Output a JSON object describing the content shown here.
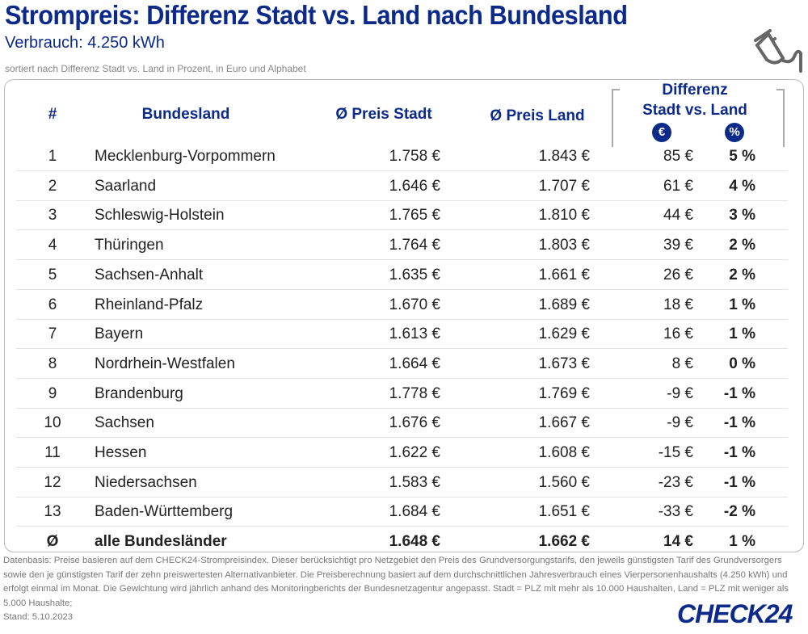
{
  "title": "Strompreis: Differenz Stadt vs. Land nach Bundesland",
  "subtitle": "Verbrauch: 4.250 kWh",
  "sort_note": "sortiert nach Differenz Stadt vs. Land in Prozent, in Euro und Alphabet",
  "headers": {
    "num": "#",
    "state": "Bundesland",
    "city": "Ø Preis Stadt",
    "rural": "Ø Preis Land",
    "diff1": "Differenz",
    "diff2": "Stadt vs. Land",
    "euro": "€",
    "pct": "%"
  },
  "rows": [
    [
      "1",
      "Mecklenburg-Vorpommern",
      "1.758 €",
      "1.843 €",
      "85 €",
      "5 %"
    ],
    [
      "2",
      "Saarland",
      "1.646 €",
      "1.707 €",
      "61 €",
      "4 %"
    ],
    [
      "3",
      "Schleswig-Holstein",
      "1.765 €",
      "1.810 €",
      "44 €",
      "3 %"
    ],
    [
      "4",
      "Thüringen",
      "1.764 €",
      "1.803 €",
      "39 €",
      "2 %"
    ],
    [
      "5",
      "Sachsen-Anhalt",
      "1.635 €",
      "1.661 €",
      "26 €",
      "2 %"
    ],
    [
      "6",
      "Rheinland-Pfalz",
      "1.670 €",
      "1.689 €",
      "18 €",
      "1 %"
    ],
    [
      "7",
      "Bayern",
      "1.613 €",
      "1.629 €",
      "16 €",
      "1 %"
    ],
    [
      "8",
      "Nordrhein-Westfalen",
      "1.664 €",
      "1.673 €",
      "8 €",
      "0 %"
    ],
    [
      "9",
      "Brandenburg",
      "1.778 €",
      "1.769 €",
      "-9 €",
      "-1 %"
    ],
    [
      "10",
      "Sachsen",
      "1.676 €",
      "1.667 €",
      "-9 €",
      "-1 %"
    ],
    [
      "11",
      "Hessen",
      "1.622 €",
      "1.608 €",
      "-15 €",
      "-1 %"
    ],
    [
      "12",
      "Niedersachsen",
      "1.583 €",
      "1.560 €",
      "-23 €",
      "-1 %"
    ],
    [
      "13",
      "Baden-Württemberg",
      "1.684 €",
      "1.651 €",
      "-33 €",
      "-2 %"
    ]
  ],
  "summary": [
    "Ø",
    "alle Bundesländer",
    "1.648 €",
    "1.662 €",
    "14 €",
    "1 %"
  ],
  "footnote": "Datenbasis: Preise basieren auf dem CHECK24-Strompreisindex. Dieser berücksichtigt pro Netzgebiet den Preis des Grundversorgungstarifs, den jeweils günstigsten Tarif des Grundversorgers sowie den je günstigsten Tarif der zehn preiswertesten Alternativanbieter. Die Preisberechnung basiert auf dem durchschnittlichen Jahresverbrauch eines Vierpersonenhaushalts (4.250 kWh) und erfolgt einmal im Monat. Die Gewichtung wird jährlich anhand des Monitoringberichts der Bundesnetzagentur angepasst. Stadt = PLZ mit mehr als 10.000 Haushalten, Land = PLZ mit weniger als 5.000 Haushalte;",
  "stand": "Stand: 5.10.2023",
  "logo": "CHECK24"
}
